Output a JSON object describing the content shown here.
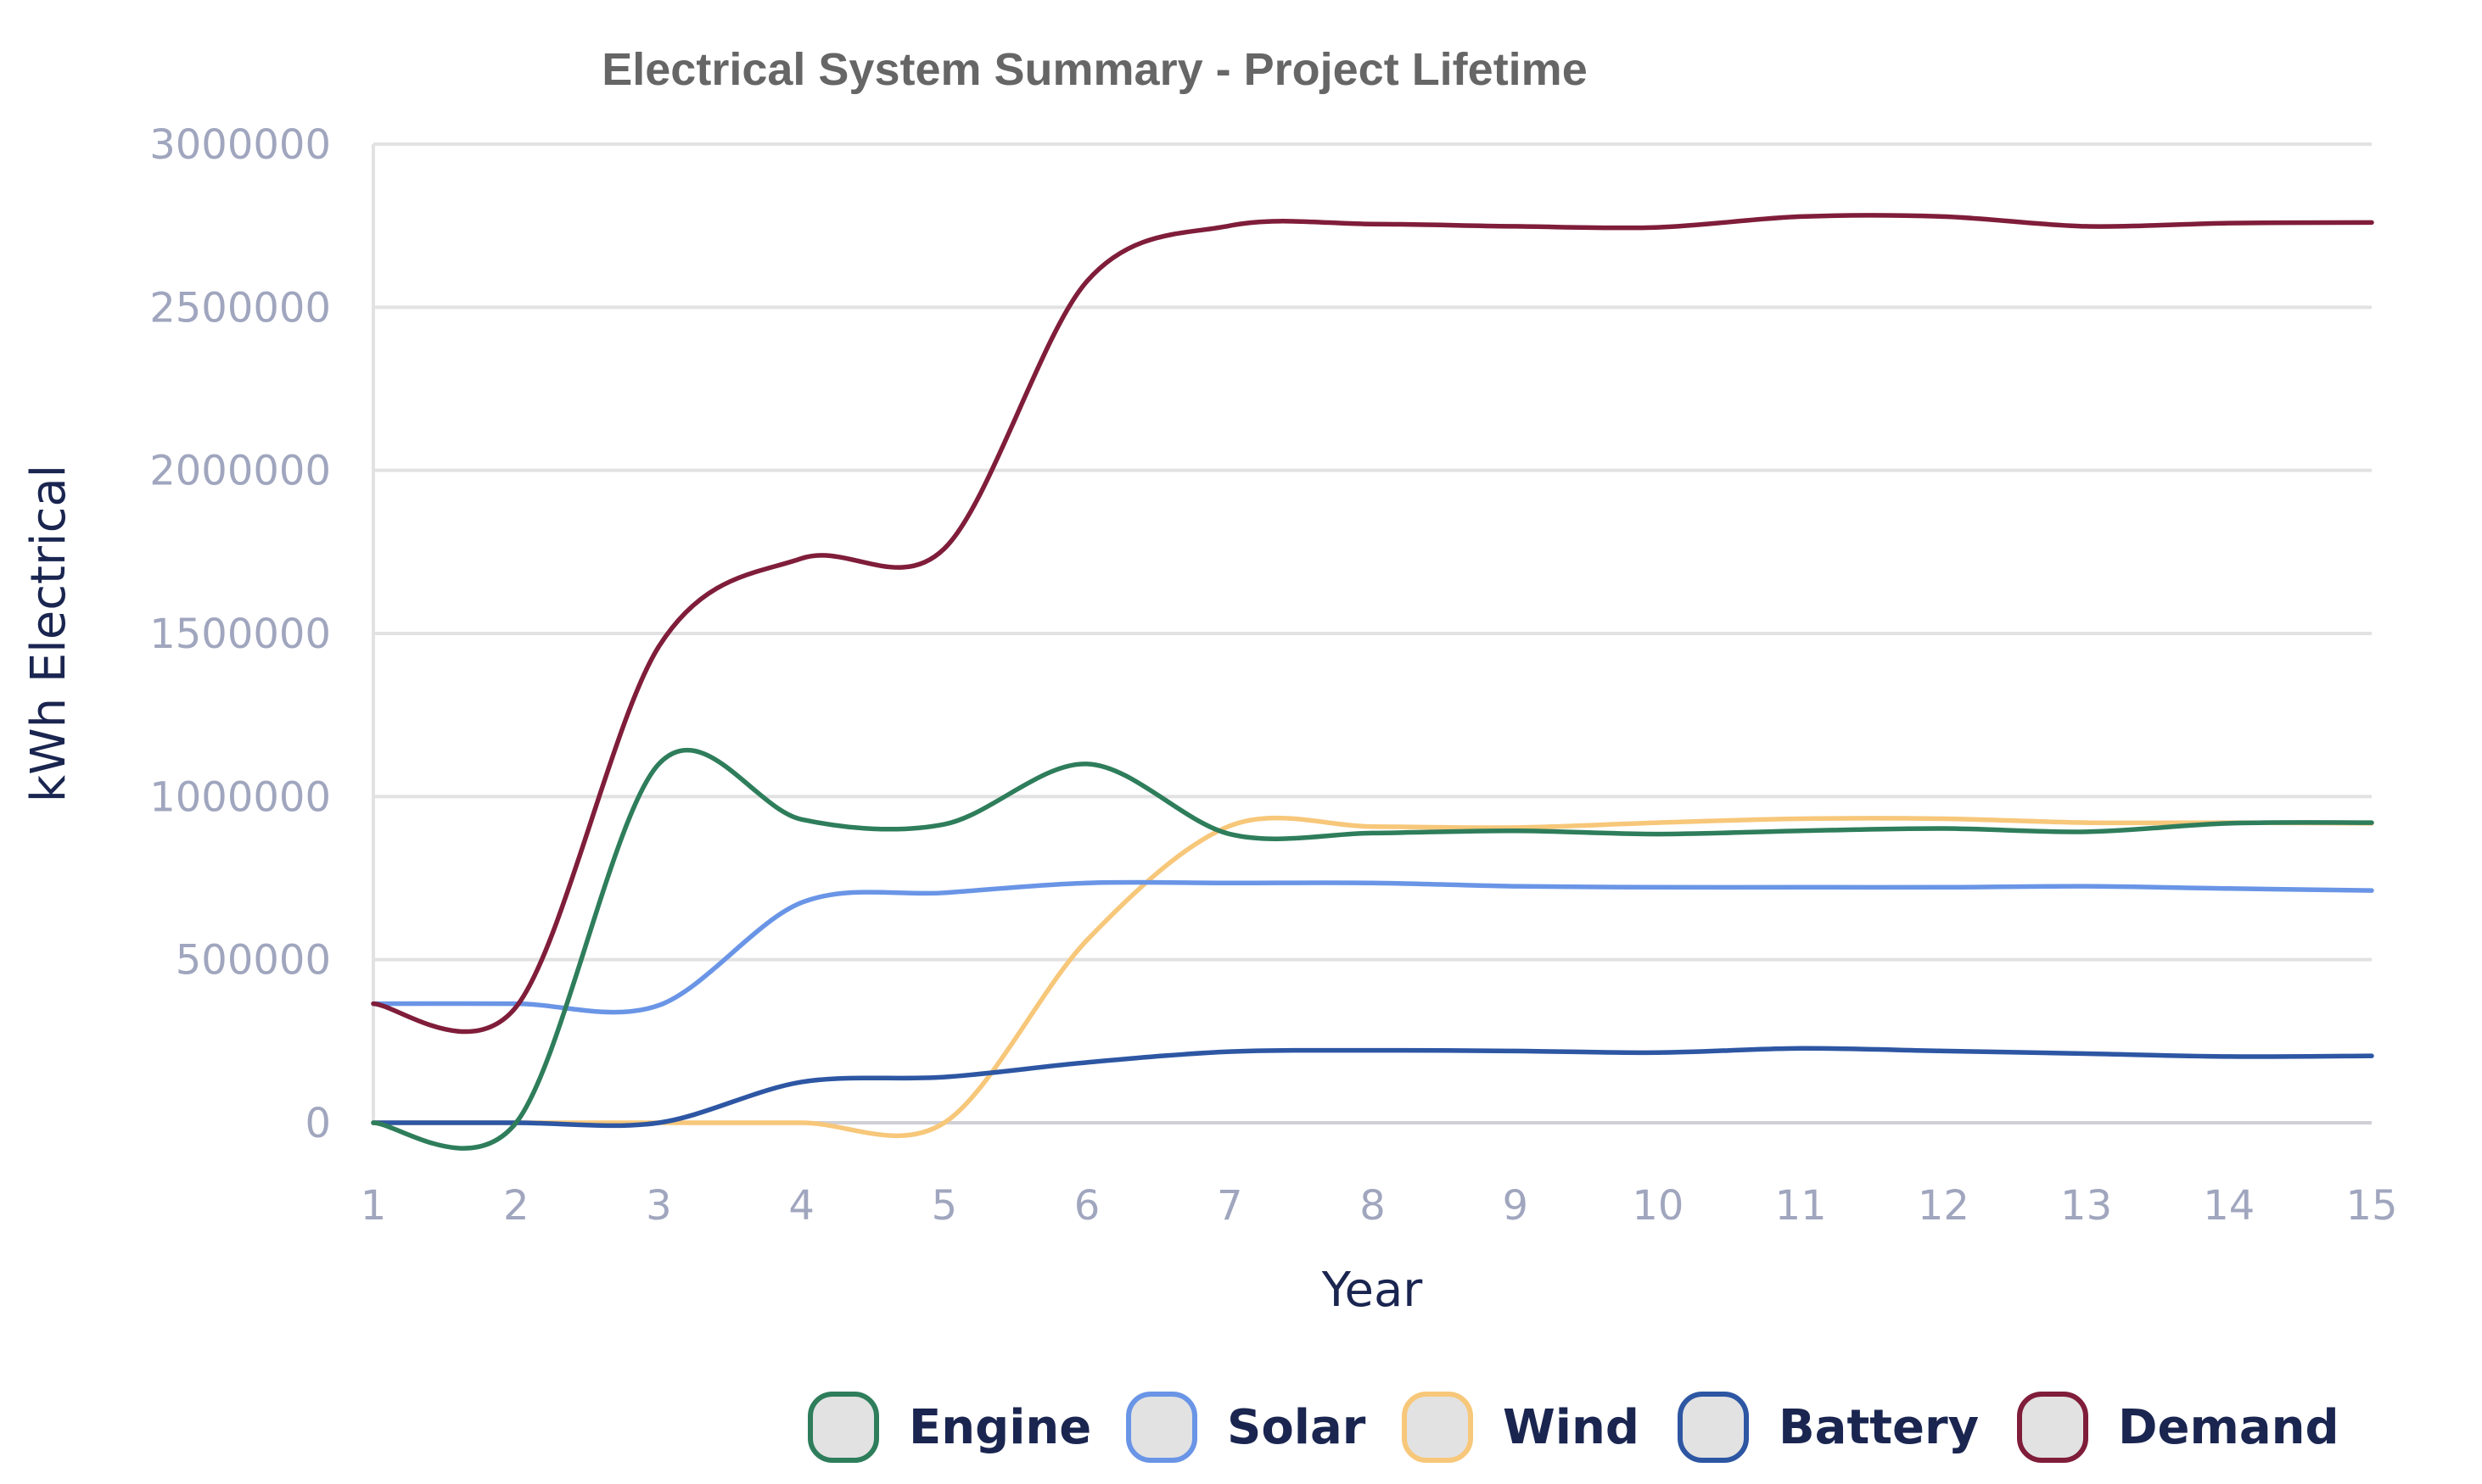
{
  "chart_data": {
    "type": "line",
    "title": "Electrical System Summary - Project Lifetime",
    "xlabel": "Year",
    "ylabel": "kWh Electrical",
    "categories": [
      "1",
      "2",
      "3",
      "4",
      "5",
      "6",
      "7",
      "8",
      "9",
      "10",
      "11",
      "12",
      "13",
      "14",
      "15"
    ],
    "ylim": [
      0,
      3000000
    ],
    "yticks": [
      0,
      500000,
      1000000,
      1500000,
      2000000,
      2500000,
      3000000
    ],
    "ytick_labels": [
      "0",
      "500000",
      "1000000",
      "1500000",
      "2000000",
      "2500000",
      "3000000"
    ],
    "grid": true,
    "legend_position": "bottom",
    "series": [
      {
        "name": "Engine",
        "color": "#2e7d5b",
        "values": [
          0,
          0,
          1100000,
          930000,
          915000,
          1100000,
          885000,
          888000,
          895000,
          885000,
          895000,
          902000,
          892000,
          918000,
          920000
        ]
      },
      {
        "name": "Solar",
        "color": "#6a95e6",
        "values": [
          365000,
          365000,
          360000,
          675000,
          705000,
          735000,
          735000,
          735000,
          725000,
          722000,
          722000,
          722000,
          725000,
          718000,
          712000
        ]
      },
      {
        "name": "Wind",
        "color": "#f7c77a",
        "values": [
          0,
          0,
          0,
          0,
          0,
          560000,
          910000,
          908000,
          905000,
          920000,
          932000,
          932000,
          920000,
          920000,
          918000
        ]
      },
      {
        "name": "Battery",
        "color": "#2d56a3",
        "values": [
          0,
          0,
          0,
          125000,
          140000,
          185000,
          218000,
          222000,
          220000,
          215000,
          228000,
          220000,
          212000,
          203000,
          205000
        ]
      },
      {
        "name": "Demand",
        "color": "#7f1d3a",
        "values": [
          365000,
          355000,
          1460000,
          1730000,
          1760000,
          2580000,
          2750000,
          2755000,
          2748000,
          2745000,
          2778000,
          2778000,
          2748000,
          2758000,
          2760000
        ]
      }
    ]
  }
}
